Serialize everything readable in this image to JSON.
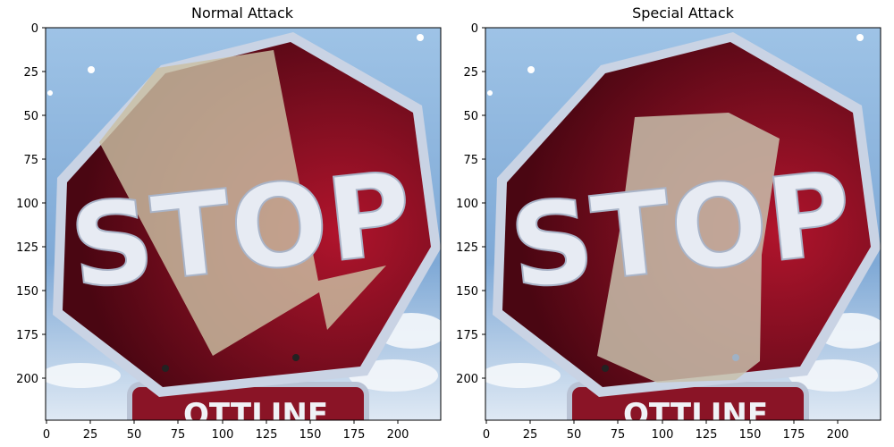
{
  "panels": [
    {
      "title": "Normal Attack",
      "sign_text": "STOP",
      "x_ticks": [
        "0",
        "25",
        "50",
        "75",
        "100",
        "125",
        "150",
        "175",
        "200"
      ],
      "y_ticks": [
        "0",
        "25",
        "50",
        "75",
        "100",
        "125",
        "150",
        "175",
        "200"
      ]
    },
    {
      "title": "Special Attack",
      "sign_text": "STOP",
      "x_ticks": [
        "0",
        "25",
        "50",
        "75",
        "100",
        "125",
        "150",
        "175",
        "200"
      ],
      "y_ticks": [
        "0",
        "25",
        "50",
        "75",
        "100",
        "125",
        "150",
        "175",
        "200"
      ]
    }
  ],
  "colors": {
    "sky": "#8fb6dc",
    "sign_red": "#7a0f20",
    "patch": "#c8c0a8"
  }
}
